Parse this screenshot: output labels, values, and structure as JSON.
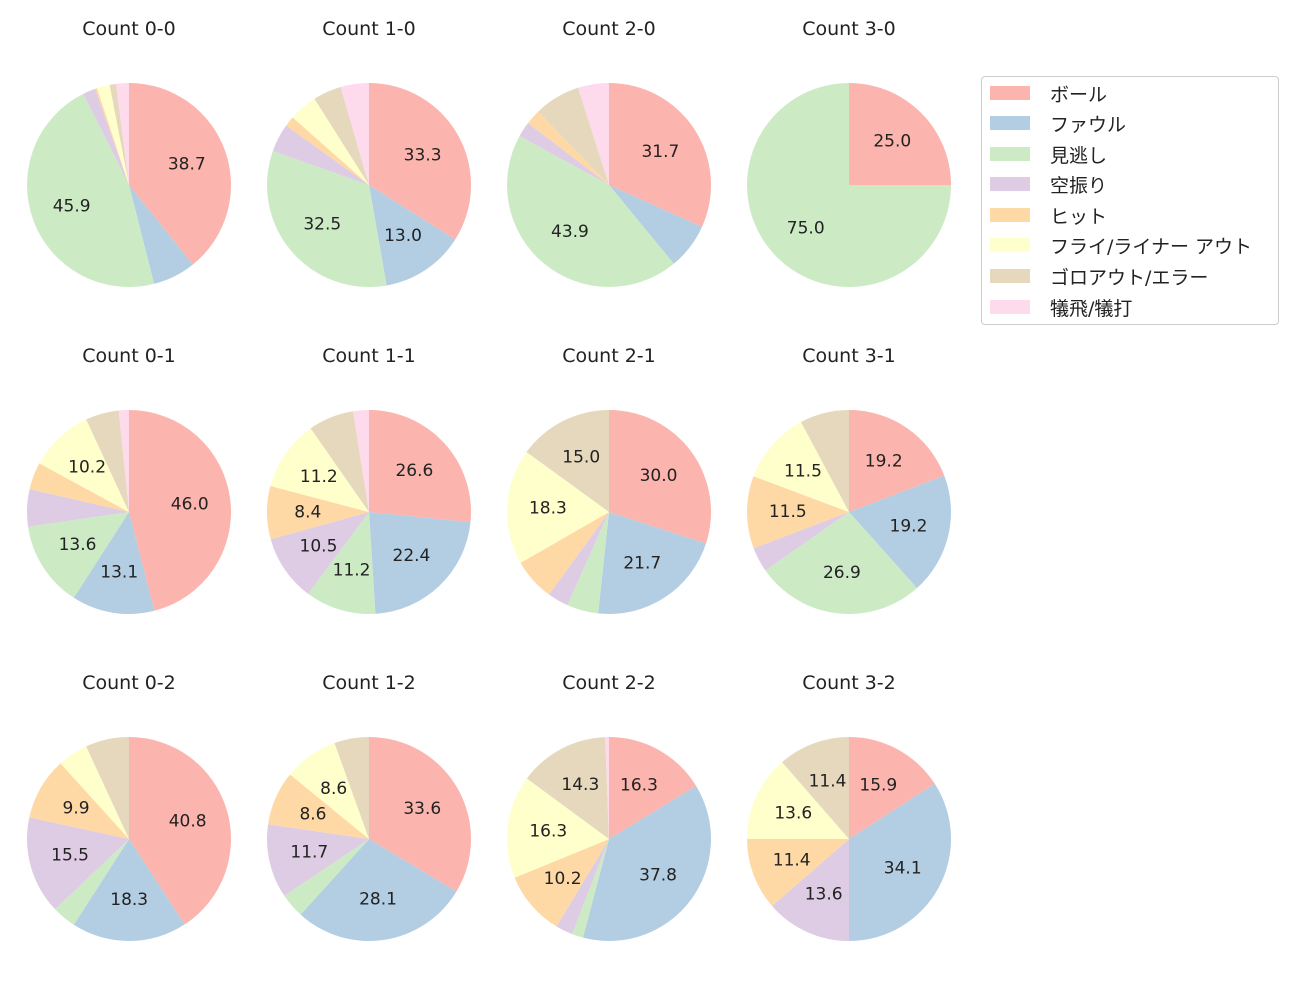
{
  "colors": [
    "#fbb4ae",
    "#b3cde3",
    "#ccebc5",
    "#decbe4",
    "#fed9a6",
    "#ffffcc",
    "#e5d8bd",
    "#fddaec"
  ],
  "legend": [
    "ボール",
    "ファウル",
    "見逃し",
    "空振り",
    "ヒット",
    "フライ/ライナー アウト",
    "ゴロアウト/エラー",
    "犠飛/犠打"
  ],
  "chart_data": [
    {
      "type": "pie",
      "title": "Count 0-0",
      "values": [
        38.7,
        6.7,
        45.9,
        2.0,
        0.3,
        2.0,
        1.0,
        2.0
      ],
      "labels": [
        "38.7",
        "",
        "45.9",
        "",
        "",
        "",
        "",
        ""
      ]
    },
    {
      "type": "pie",
      "title": "Count 1-0",
      "values": [
        33.3,
        13.0,
        32.5,
        4.4,
        1.6,
        4.4,
        4.4,
        4.4
      ],
      "labels": [
        "33.3",
        "13.0",
        "32.5",
        "",
        "",
        "",
        "",
        ""
      ]
    },
    {
      "type": "pie",
      "title": "Count 2-0",
      "values": [
        31.7,
        7.3,
        43.9,
        2.4,
        2.4,
        0,
        7.3,
        4.9
      ],
      "labels": [
        "31.7",
        "",
        "43.9",
        "",
        "",
        "",
        "",
        ""
      ]
    },
    {
      "type": "pie",
      "title": "Count 3-0",
      "values": [
        25.0,
        0,
        75.0,
        0,
        0,
        0,
        0,
        0
      ],
      "labels": [
        "25.0",
        "",
        "75.0",
        "",
        "",
        "",
        "",
        ""
      ]
    },
    {
      "type": "pie",
      "title": "Count 0-1",
      "values": [
        46.0,
        13.1,
        13.6,
        5.9,
        4.3,
        10.2,
        5.3,
        1.6
      ],
      "labels": [
        "46.0",
        "13.1",
        "13.6",
        "",
        "",
        "10.2",
        "",
        ""
      ]
    },
    {
      "type": "pie",
      "title": "Count 1-1",
      "values": [
        26.6,
        22.4,
        11.2,
        10.5,
        8.4,
        11.2,
        7.2,
        2.5
      ],
      "labels": [
        "26.6",
        "22.4",
        "11.2",
        "10.5",
        "8.4",
        "11.2",
        "",
        ""
      ]
    },
    {
      "type": "pie",
      "title": "Count 2-1",
      "values": [
        30.0,
        21.7,
        5.0,
        3.3,
        6.7,
        18.3,
        15.0,
        0
      ],
      "labels": [
        "30.0",
        "21.7",
        "",
        "",
        "",
        "18.3",
        "15.0",
        ""
      ]
    },
    {
      "type": "pie",
      "title": "Count 3-1",
      "values": [
        19.2,
        19.2,
        26.9,
        3.9,
        11.5,
        11.5,
        7.8,
        0
      ],
      "labels": [
        "19.2",
        "19.2",
        "26.9",
        "",
        "11.5",
        "11.5",
        "",
        ""
      ]
    },
    {
      "type": "pie",
      "title": "Count 0-2",
      "values": [
        40.8,
        18.3,
        3.8,
        15.5,
        9.9,
        4.8,
        6.9,
        0
      ],
      "labels": [
        "40.8",
        "18.3",
        "",
        "15.5",
        "9.9",
        "",
        "",
        ""
      ]
    },
    {
      "type": "pie",
      "title": "Count 1-2",
      "values": [
        33.6,
        28.1,
        3.9,
        11.7,
        8.6,
        8.6,
        5.5,
        0
      ],
      "labels": [
        "33.6",
        "28.1",
        "",
        "11.7",
        "8.6",
        "8.6",
        "",
        ""
      ]
    },
    {
      "type": "pie",
      "title": "Count 2-2",
      "values": [
        16.3,
        37.8,
        1.8,
        2.7,
        10.2,
        16.3,
        14.3,
        0.6
      ],
      "labels": [
        "16.3",
        "37.8",
        "",
        "",
        "10.2",
        "16.3",
        "14.3",
        ""
      ]
    },
    {
      "type": "pie",
      "title": "Count 3-2",
      "values": [
        15.9,
        34.1,
        0,
        13.6,
        11.4,
        13.6,
        11.4,
        0
      ],
      "labels": [
        "15.9",
        "34.1",
        "",
        "13.6",
        "11.4",
        "13.6",
        "11.4",
        ""
      ]
    }
  ]
}
